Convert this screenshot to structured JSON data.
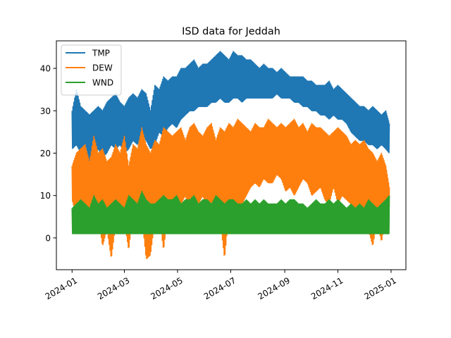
{
  "chart_data": {
    "type": "line",
    "title": "ISD data for Jeddah",
    "xlabel": "",
    "ylabel": "",
    "xlim": [
      "2023-12-14",
      "2025-01-18"
    ],
    "ylim": [
      -7.5,
      46.5
    ],
    "x_ticks": [
      "2024-01",
      "2024-03",
      "2024-05",
      "2024-07",
      "2024-09",
      "2024-11",
      "2025-01"
    ],
    "y_ticks": [
      0,
      10,
      20,
      30,
      40
    ],
    "grid": false,
    "legend": "top-left",
    "series": [
      {
        "name": "TMP",
        "color": "#1f77b4",
        "x": [
          "2024-01-01",
          "2024-01-06",
          "2024-01-11",
          "2024-01-16",
          "2024-01-21",
          "2024-01-26",
          "2024-01-31",
          "2024-02-05",
          "2024-02-10",
          "2024-02-15",
          "2024-02-20",
          "2024-02-25",
          "2024-03-01",
          "2024-03-06",
          "2024-03-11",
          "2024-03-16",
          "2024-03-21",
          "2024-03-26",
          "2024-03-31",
          "2024-04-05",
          "2024-04-10",
          "2024-04-15",
          "2024-04-20",
          "2024-04-25",
          "2024-04-30",
          "2024-05-05",
          "2024-05-10",
          "2024-05-15",
          "2024-05-20",
          "2024-05-25",
          "2024-05-30",
          "2024-06-04",
          "2024-06-09",
          "2024-06-14",
          "2024-06-19",
          "2024-06-24",
          "2024-06-29",
          "2024-07-04",
          "2024-07-09",
          "2024-07-14",
          "2024-07-19",
          "2024-07-24",
          "2024-07-29",
          "2024-08-03",
          "2024-08-08",
          "2024-08-13",
          "2024-08-18",
          "2024-08-23",
          "2024-08-28",
          "2024-09-02",
          "2024-09-07",
          "2024-09-12",
          "2024-09-17",
          "2024-09-22",
          "2024-09-27",
          "2024-10-02",
          "2024-10-07",
          "2024-10-12",
          "2024-10-17",
          "2024-10-22",
          "2024-10-27",
          "2024-11-01",
          "2024-11-06",
          "2024-11-11",
          "2024-11-16",
          "2024-11-21",
          "2024-11-26",
          "2024-12-01",
          "2024-12-06",
          "2024-12-11",
          "2024-12-16",
          "2024-12-21",
          "2024-12-26",
          "2024-12-30"
        ],
        "low": [
          21,
          22,
          20,
          19,
          18,
          20,
          21,
          19,
          20,
          22,
          21,
          22,
          20,
          21,
          23,
          22,
          24,
          23,
          21,
          22,
          25,
          24,
          26,
          27,
          26,
          28,
          29,
          30,
          30,
          31,
          31,
          31,
          32,
          32,
          33,
          32,
          32,
          33,
          33,
          32,
          33,
          33,
          33,
          33,
          33,
          33,
          33,
          34,
          33,
          33,
          33,
          32,
          32,
          31,
          31,
          30,
          30,
          29,
          29,
          28,
          29,
          28,
          28,
          27,
          25,
          24,
          23,
          23,
          22,
          22,
          21,
          22,
          21,
          20
        ],
        "high": [
          30,
          35,
          31,
          30,
          29,
          30,
          31,
          30,
          32,
          33,
          34,
          32,
          31,
          33,
          34,
          33,
          35,
          34,
          30,
          36,
          35,
          38,
          37,
          38,
          38,
          40,
          40,
          41,
          42,
          40,
          41,
          41,
          42,
          43,
          44,
          43,
          42,
          44,
          43,
          43,
          42,
          42,
          41,
          40,
          41,
          40,
          40,
          39,
          40,
          39,
          38,
          38,
          38,
          38,
          37,
          37,
          36,
          36,
          36,
          37,
          35,
          36,
          35,
          34,
          33,
          32,
          31,
          31,
          30,
          31,
          30,
          29,
          30,
          27
        ]
      },
      {
        "name": "DEW",
        "color": "#ff7f0e",
        "x": [
          "2024-01-01",
          "2024-01-06",
          "2024-01-11",
          "2024-01-16",
          "2024-01-21",
          "2024-01-26",
          "2024-01-31",
          "2024-02-05",
          "2024-02-10",
          "2024-02-15",
          "2024-02-20",
          "2024-02-25",
          "2024-03-01",
          "2024-03-06",
          "2024-03-11",
          "2024-03-16",
          "2024-03-21",
          "2024-03-26",
          "2024-03-31",
          "2024-04-05",
          "2024-04-10",
          "2024-04-15",
          "2024-04-20",
          "2024-04-25",
          "2024-04-30",
          "2024-05-05",
          "2024-05-10",
          "2024-05-15",
          "2024-05-20",
          "2024-05-25",
          "2024-05-30",
          "2024-06-04",
          "2024-06-09",
          "2024-06-14",
          "2024-06-19",
          "2024-06-24",
          "2024-06-29",
          "2024-07-04",
          "2024-07-09",
          "2024-07-14",
          "2024-07-19",
          "2024-07-24",
          "2024-07-29",
          "2024-08-03",
          "2024-08-08",
          "2024-08-13",
          "2024-08-18",
          "2024-08-23",
          "2024-08-28",
          "2024-09-02",
          "2024-09-07",
          "2024-09-12",
          "2024-09-17",
          "2024-09-22",
          "2024-09-27",
          "2024-10-02",
          "2024-10-07",
          "2024-10-12",
          "2024-10-17",
          "2024-10-22",
          "2024-10-27",
          "2024-11-01",
          "2024-11-06",
          "2024-11-11",
          "2024-11-16",
          "2024-11-21",
          "2024-11-26",
          "2024-12-01",
          "2024-12-06",
          "2024-12-11",
          "2024-12-16",
          "2024-12-21",
          "2024-12-26",
          "2024-12-30"
        ],
        "low": [
          9,
          5,
          8,
          6,
          4,
          3,
          5,
          -2,
          2,
          -5,
          3,
          6,
          4,
          -3,
          6,
          7,
          5,
          -5,
          -4,
          4,
          5,
          -3,
          6,
          5,
          4,
          8,
          10,
          5,
          4,
          8,
          10,
          6,
          5,
          9,
          4,
          -5,
          6,
          5,
          7,
          8,
          10,
          12,
          13,
          12,
          14,
          13,
          13,
          15,
          14,
          11,
          12,
          10,
          12,
          14,
          13,
          10,
          11,
          12,
          9,
          8,
          12,
          8,
          10,
          9,
          8,
          7,
          6,
          3,
          2,
          -2,
          4,
          -1,
          5,
          4
        ],
        "high": [
          17,
          20,
          21,
          22,
          18,
          24,
          20,
          21,
          18,
          19,
          22,
          20,
          24,
          17,
          22,
          21,
          26,
          22,
          20,
          23,
          22,
          26,
          25,
          24,
          25,
          26,
          23,
          26,
          27,
          25,
          24,
          26,
          27,
          23,
          26,
          25,
          27,
          26,
          28,
          27,
          26,
          25,
          27,
          26,
          26,
          28,
          27,
          26,
          27,
          26,
          27,
          28,
          26,
          27,
          25,
          27,
          26,
          26,
          25,
          24,
          25,
          26,
          25,
          24,
          22,
          23,
          22,
          23,
          21,
          20,
          18,
          20,
          17,
          12
        ]
      },
      {
        "name": "WND",
        "color": "#2ca02c",
        "x": [
          "2024-01-01",
          "2024-01-06",
          "2024-01-11",
          "2024-01-16",
          "2024-01-21",
          "2024-01-26",
          "2024-01-31",
          "2024-02-05",
          "2024-02-10",
          "2024-02-15",
          "2024-02-20",
          "2024-02-25",
          "2024-03-01",
          "2024-03-06",
          "2024-03-11",
          "2024-03-16",
          "2024-03-21",
          "2024-03-26",
          "2024-03-31",
          "2024-04-05",
          "2024-04-10",
          "2024-04-15",
          "2024-04-20",
          "2024-04-25",
          "2024-04-30",
          "2024-05-05",
          "2024-05-10",
          "2024-05-15",
          "2024-05-20",
          "2024-05-25",
          "2024-05-30",
          "2024-06-04",
          "2024-06-09",
          "2024-06-14",
          "2024-06-19",
          "2024-06-24",
          "2024-06-29",
          "2024-07-04",
          "2024-07-09",
          "2024-07-14",
          "2024-07-19",
          "2024-07-24",
          "2024-07-29",
          "2024-08-03",
          "2024-08-08",
          "2024-08-13",
          "2024-08-18",
          "2024-08-23",
          "2024-08-28",
          "2024-09-02",
          "2024-09-07",
          "2024-09-12",
          "2024-09-17",
          "2024-09-22",
          "2024-09-27",
          "2024-10-02",
          "2024-10-07",
          "2024-10-12",
          "2024-10-17",
          "2024-10-22",
          "2024-10-27",
          "2024-11-01",
          "2024-11-06",
          "2024-11-11",
          "2024-11-16",
          "2024-11-21",
          "2024-11-26",
          "2024-12-01",
          "2024-12-06",
          "2024-12-11",
          "2024-12-16",
          "2024-12-21",
          "2024-12-26",
          "2024-12-30"
        ],
        "low": [
          1,
          1,
          1,
          1,
          1,
          1,
          1,
          1,
          1,
          1,
          1,
          1,
          1,
          1,
          1,
          1,
          1,
          1,
          1,
          1,
          1,
          1,
          1,
          1,
          1,
          1,
          1,
          1,
          1,
          1,
          1,
          1,
          1,
          1,
          1,
          1,
          1,
          1,
          1,
          1,
          1,
          1,
          1,
          1,
          1,
          1,
          1,
          1,
          1,
          1,
          1,
          1,
          1,
          1,
          1,
          1,
          1,
          1,
          1,
          1,
          1,
          1,
          1,
          1,
          1,
          1,
          1,
          1,
          1,
          1,
          1,
          1,
          1,
          1
        ],
        "high": [
          7,
          8,
          9,
          8,
          7,
          10,
          8,
          9,
          7,
          8,
          9,
          8,
          7,
          10,
          9,
          8,
          11,
          9,
          8,
          8,
          9,
          10,
          9,
          9,
          10,
          8,
          9,
          9,
          10,
          8,
          9,
          9,
          8,
          10,
          9,
          8,
          9,
          9,
          8,
          8,
          9,
          8,
          9,
          8,
          9,
          8,
          8,
          8,
          9,
          8,
          9,
          9,
          8,
          8,
          7,
          8,
          9,
          8,
          8,
          9,
          8,
          9,
          8,
          7,
          8,
          7,
          8,
          7,
          9,
          8,
          7,
          8,
          9,
          10
        ]
      }
    ]
  }
}
